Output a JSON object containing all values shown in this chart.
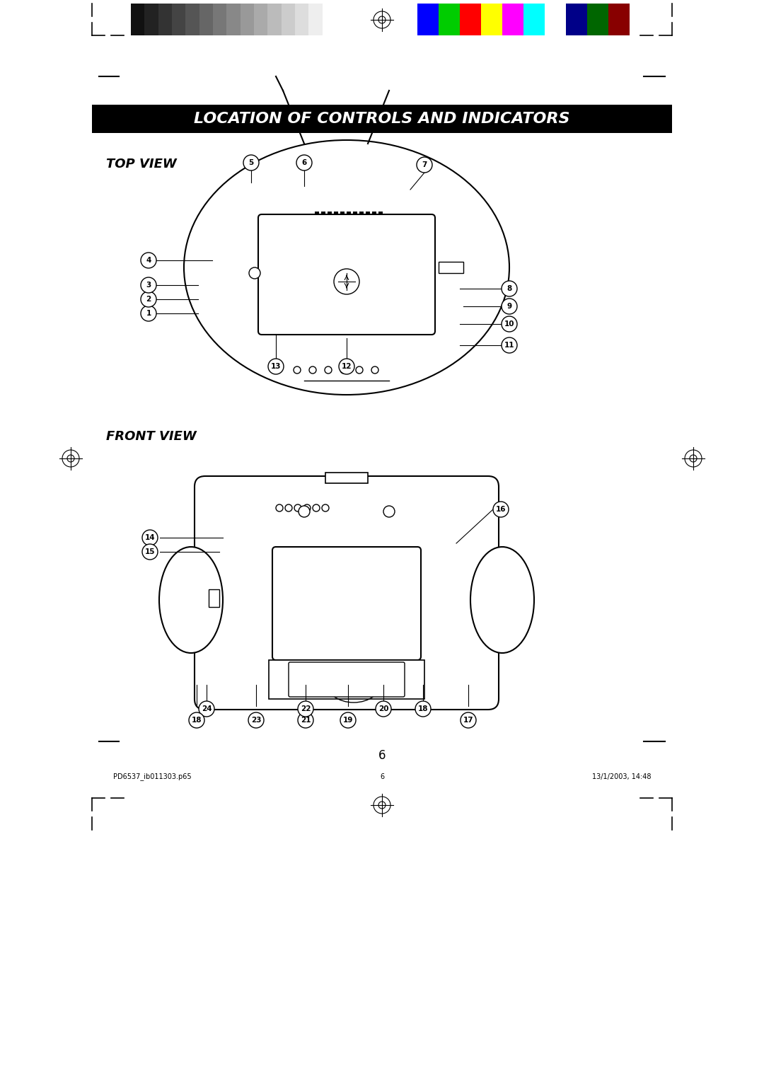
{
  "page_width": 10.8,
  "page_height": 15.28,
  "bg_color": "#ffffff",
  "title_text": "LOCATION OF CONTROLS AND INDICATORS",
  "title_bg": "#000000",
  "title_fg": "#ffffff",
  "top_view_label": "TOP VIEW",
  "front_view_label": "FRONT VIEW",
  "grayscale_colors": [
    "#111111",
    "#222222",
    "#333333",
    "#444444",
    "#555555",
    "#666666",
    "#777777",
    "#888888",
    "#999999",
    "#aaaaaa",
    "#bbbbbb",
    "#cccccc",
    "#dddddd",
    "#eeeeee",
    "#ffffff"
  ],
  "color_bars": [
    "#0000ff",
    "#00cc00",
    "#ff0000",
    "#ffff00",
    "#ff00ff",
    "#00ffff",
    "#ffffff",
    "#000088",
    "#006600",
    "#880000"
  ],
  "footer_left": "PD6537_ib011303.p65",
  "footer_center": "6",
  "footer_right": "13/1/2003, 14:48"
}
